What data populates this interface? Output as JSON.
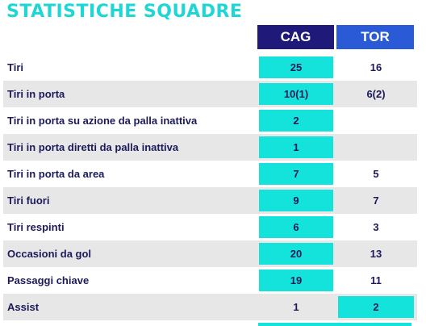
{
  "title": "STATISTICHE SQUADRE",
  "teams": {
    "home": "CAG",
    "away": "TOR"
  },
  "colors": {
    "title": "#1fd6d6",
    "home_header": "#1f1a7a",
    "away_header": "#2a5ad6",
    "highlight": "#13e3db",
    "row_shade": "#e7e7e7",
    "text": "#1c1a5a"
  },
  "rows": [
    {
      "label": "Tiri",
      "cag": "25",
      "tor": "16",
      "winner": "cag"
    },
    {
      "label": "Tiri in porta",
      "cag": "10(1)",
      "tor": "6(2)",
      "winner": "cag"
    },
    {
      "label": "Tiri in porta su azione da palla inattiva",
      "cag": "2",
      "tor": "",
      "winner": "cag"
    },
    {
      "label": "Tiri in porta diretti da palla inattiva",
      "cag": "1",
      "tor": "",
      "winner": "cag"
    },
    {
      "label": "Tiri in porta da area",
      "cag": "7",
      "tor": "5",
      "winner": "cag"
    },
    {
      "label": "Tiri fuori",
      "cag": "9",
      "tor": "7",
      "winner": "cag"
    },
    {
      "label": "Tiri respinti",
      "cag": "6",
      "tor": "3",
      "winner": "cag"
    },
    {
      "label": "Occasioni da gol",
      "cag": "20",
      "tor": "13",
      "winner": "cag"
    },
    {
      "label": "Passaggi chiave",
      "cag": "19",
      "tor": "11",
      "winner": "cag"
    },
    {
      "label": "Assist",
      "cag": "1",
      "tor": "2",
      "winner": "tor"
    }
  ]
}
